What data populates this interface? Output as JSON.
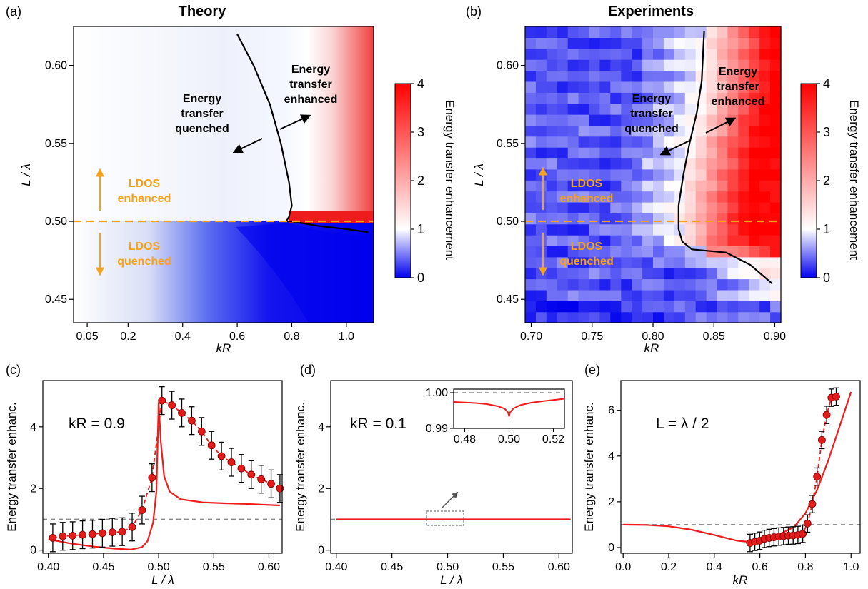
{
  "colors": {
    "red": "#ee1c1c",
    "blue": "#1010ee",
    "orange": "#f5a21b",
    "gray_dashed": "#888888",
    "marker": "#e21b1b"
  },
  "panels": {
    "a": {
      "letter": "(a)",
      "title": "Theory",
      "xlabel": "kR",
      "ylabel": "L / λ",
      "xticks": [
        "0.05",
        "0.2",
        "0.4",
        "0.6",
        "0.8",
        "1.0"
      ],
      "yticks": [
        "0.45",
        "0.50",
        "0.55",
        "0.60"
      ],
      "colorbar_label": "Energy transfer enhancement",
      "colorbar_ticks": [
        "0",
        "1",
        "2",
        "3",
        "4"
      ],
      "annotations": {
        "quenched_1": "Energy",
        "quenched_2": "transfer",
        "quenched_3": "quenched",
        "enhanced_1": "Energy",
        "enhanced_2": "transfer",
        "enhanced_3": "enhanced",
        "ldos_enh_1": "LDOS",
        "ldos_enh_2": "enhanced",
        "ldos_q_1": "LDOS",
        "ldos_q_2": "quenched"
      }
    },
    "b": {
      "letter": "(b)",
      "title": "Experiments",
      "xlabel": "kR",
      "ylabel": "L / λ",
      "xticks": [
        "0.70",
        "0.75",
        "0.80",
        "0.85",
        "0.90"
      ],
      "yticks": [
        "0.45",
        "0.50",
        "0.55",
        "0.60"
      ],
      "colorbar_label": "Energy transfer enhancement",
      "colorbar_ticks": [
        "0",
        "1",
        "2",
        "3",
        "4"
      ],
      "annotations": {
        "quenched_1": "Energy",
        "quenched_2": "transfer",
        "quenched_3": "quenched",
        "enhanced_1": "Energy",
        "enhanced_2": "transfer",
        "enhanced_3": "enhanced",
        "ldos_enh_1": "LDOS",
        "ldos_enh_2": "enhanced",
        "ldos_q_1": "LDOS",
        "ldos_q_2": "quenched"
      }
    },
    "c": {
      "letter": "(c)",
      "param_label": "kR = 0.9",
      "xlabel": "L / λ",
      "ylabel": "Energy transfer enhanc.",
      "xticks": [
        "0.40",
        "0.45",
        "0.50",
        "0.55",
        "0.60"
      ],
      "yticks": [
        "0",
        "2",
        "4"
      ]
    },
    "d": {
      "letter": "(d)",
      "param_label": "kR = 0.1",
      "xlabel": "L / λ",
      "ylabel": "Energy transfer enhanc.",
      "xticks": [
        "0.40",
        "0.45",
        "0.50",
        "0.55",
        "0.60"
      ],
      "yticks": [
        "0",
        "2",
        "4"
      ],
      "inset_xticks": [
        "0.48",
        "0.50",
        "0.52"
      ],
      "inset_yticks": [
        "0.99",
        "1.00"
      ]
    },
    "e": {
      "letter": "(e)",
      "param_label": "L = λ / 2",
      "xlabel": "kR",
      "ylabel": "Energy transfer enhanc.",
      "xticks": [
        "0.0",
        "0.2",
        "0.4",
        "0.6",
        "0.8",
        "1.0"
      ],
      "yticks": [
        "0",
        "2",
        "4",
        "6"
      ]
    }
  },
  "chart_data": [
    {
      "type": "heatmap",
      "panel": "a",
      "title": "Theory",
      "xlabel": "kR",
      "ylabel": "L / λ",
      "xlim": [
        0.0,
        1.1
      ],
      "ylim": [
        0.435,
        0.625
      ],
      "colorbar": {
        "label": "Energy transfer enhancement",
        "range": [
          0,
          4
        ]
      },
      "boundary_curve": {
        "x": [
          0.6,
          0.66,
          0.72,
          0.76,
          0.79,
          0.8,
          0.79,
          0.78,
          0.8,
          0.9,
          1.0,
          1.08
        ],
        "y": [
          0.62,
          0.6,
          0.575,
          0.55,
          0.525,
          0.51,
          0.503,
          0.5,
          0.5,
          0.497,
          0.495,
          0.493
        ]
      },
      "reference_line": {
        "y": 0.5,
        "style": "dashed"
      }
    },
    {
      "type": "heatmap",
      "panel": "b",
      "title": "Experiments",
      "xlabel": "kR",
      "ylabel": "L / λ",
      "xlim": [
        0.695,
        0.905
      ],
      "ylim": [
        0.435,
        0.625
      ],
      "colorbar": {
        "label": "Energy transfer enhancement",
        "range": [
          0,
          4
        ]
      },
      "boundary_curve": {
        "x": [
          0.842,
          0.84,
          0.836,
          0.83,
          0.825,
          0.821,
          0.821,
          0.824,
          0.832,
          0.86,
          0.88,
          0.898
        ],
        "y": [
          0.622,
          0.59,
          0.57,
          0.55,
          0.53,
          0.51,
          0.495,
          0.487,
          0.482,
          0.48,
          0.472,
          0.46
        ]
      },
      "reference_line": {
        "y": 0.5,
        "style": "dashed"
      }
    },
    {
      "type": "line",
      "panel": "c",
      "xlabel": "L / λ",
      "ylabel": "Energy transfer enhanc.",
      "xlim": [
        0.395,
        0.612
      ],
      "ylim": [
        -0.1,
        5.5
      ],
      "reference_line": {
        "y": 1.0
      },
      "theory": {
        "x": [
          0.4,
          0.42,
          0.44,
          0.46,
          0.475,
          0.485,
          0.49,
          0.495,
          0.498,
          0.5,
          0.502,
          0.505,
          0.51,
          0.52,
          0.54,
          0.56,
          0.58,
          0.61
        ],
        "y": [
          0.35,
          0.22,
          0.12,
          0.05,
          0.02,
          0.1,
          0.3,
          0.9,
          1.9,
          4.8,
          3.5,
          2.4,
          1.9,
          1.65,
          1.55,
          1.52,
          1.5,
          1.45
        ]
      },
      "experiment": {
        "x": [
          0.404,
          0.413,
          0.422,
          0.431,
          0.44,
          0.449,
          0.458,
          0.467,
          0.476,
          0.485,
          0.494,
          0.503,
          0.512,
          0.521,
          0.53,
          0.539,
          0.548,
          0.557,
          0.566,
          0.575,
          0.584,
          0.593,
          0.602,
          0.61
        ],
        "y": [
          0.4,
          0.45,
          0.47,
          0.5,
          0.52,
          0.55,
          0.58,
          0.6,
          0.75,
          1.3,
          2.35,
          4.85,
          4.7,
          4.45,
          4.2,
          3.85,
          3.4,
          3.05,
          2.85,
          2.65,
          2.45,
          2.3,
          2.15,
          2.0
        ]
      },
      "error": 0.45
    },
    {
      "type": "line",
      "panel": "d",
      "xlabel": "L / λ",
      "ylabel": "Energy transfer enhanc.",
      "xlim": [
        0.395,
        0.612
      ],
      "ylim": [
        -0.1,
        5.5
      ],
      "reference_line": {
        "y": 1.0
      },
      "theory": {
        "x": [
          0.4,
          0.61
        ],
        "y": [
          1.0,
          1.0
        ]
      },
      "inset": {
        "xlim": [
          0.475,
          0.525
        ],
        "ylim": [
          0.99,
          1.001
        ],
        "reference_line": {
          "y": 1.0
        },
        "theory": {
          "x": [
            0.475,
            0.485,
            0.49,
            0.495,
            0.498,
            0.4995,
            0.5,
            0.5005,
            0.502,
            0.505,
            0.51,
            0.515,
            0.525
          ],
          "y": [
            0.9974,
            0.9971,
            0.9968,
            0.9962,
            0.9955,
            0.9945,
            0.9935,
            0.9945,
            0.9956,
            0.9965,
            0.9972,
            0.9976,
            0.9983
          ]
        }
      }
    },
    {
      "type": "line",
      "panel": "e",
      "xlabel": "kR",
      "ylabel": "Energy transfer enhanc.",
      "xlim": [
        -0.01,
        1.04
      ],
      "ylim": [
        -0.25,
        7.3
      ],
      "reference_line": {
        "y": 1.0
      },
      "theory": {
        "x": [
          0.0,
          0.1,
          0.2,
          0.3,
          0.4,
          0.5,
          0.55,
          0.6,
          0.65,
          0.7,
          0.75,
          0.8,
          0.85,
          0.9,
          0.95,
          1.0
        ],
        "y": [
          1.0,
          0.99,
          0.93,
          0.78,
          0.55,
          0.3,
          0.25,
          0.3,
          0.45,
          0.65,
          0.9,
          1.5,
          2.5,
          3.8,
          5.3,
          6.8
        ]
      },
      "experiment": {
        "x": [
          0.557,
          0.578,
          0.599,
          0.62,
          0.641,
          0.662,
          0.683,
          0.704,
          0.725,
          0.746,
          0.767,
          0.788,
          0.809,
          0.83,
          0.851,
          0.872,
          0.893,
          0.914,
          0.935
        ],
        "y": [
          0.2,
          0.25,
          0.3,
          0.38,
          0.42,
          0.45,
          0.48,
          0.5,
          0.52,
          0.53,
          0.55,
          0.6,
          1.05,
          1.9,
          3.1,
          4.7,
          5.8,
          6.55,
          6.6
        ]
      },
      "error": 0.38
    }
  ]
}
